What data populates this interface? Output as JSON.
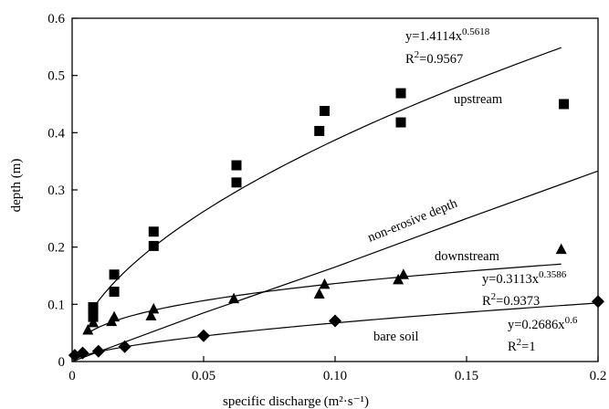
{
  "chart_data": {
    "type": "scatter",
    "title": "",
    "xlabel": "specific discharge",
    "xlabel_unit": "(m²·s⁻¹)",
    "ylabel": "depth (m)",
    "xlim": [
      0,
      0.2
    ],
    "ylim": [
      0,
      0.6
    ],
    "x_ticks": [
      0,
      0.05,
      0.1,
      0.15,
      0.2
    ],
    "x_tick_labels": [
      "0",
      "0.05",
      "0.10",
      "0.15",
      "0.2"
    ],
    "y_ticks": [
      0,
      0.1,
      0.2,
      0.3,
      0.4,
      0.5,
      0.6
    ],
    "y_tick_labels": [
      "0",
      "0.1",
      "0.2",
      "0.3",
      "0.4",
      "0.5",
      "0.6"
    ],
    "grid": false,
    "legend": "none",
    "series": [
      {
        "name": "upstream",
        "marker": "square",
        "color": "#000000",
        "points": [
          [
            0.008,
            0.095
          ],
          [
            0.008,
            0.09
          ],
          [
            0.008,
            0.078
          ],
          [
            0.016,
            0.152
          ],
          [
            0.016,
            0.122
          ],
          [
            0.031,
            0.227
          ],
          [
            0.031,
            0.202
          ],
          [
            0.0625,
            0.343
          ],
          [
            0.0625,
            0.313
          ],
          [
            0.094,
            0.403
          ],
          [
            0.096,
            0.438
          ],
          [
            0.125,
            0.469
          ],
          [
            0.125,
            0.418
          ],
          [
            0.187,
            0.45
          ]
        ],
        "fit": {
          "a": 1.4114,
          "b": 0.5618,
          "r2": 0.9567
        }
      },
      {
        "name": "downstream",
        "marker": "triangle",
        "color": "#000000",
        "points": [
          [
            0.006,
            0.055
          ],
          [
            0.008,
            0.068
          ],
          [
            0.015,
            0.07
          ],
          [
            0.016,
            0.078
          ],
          [
            0.03,
            0.08
          ],
          [
            0.031,
            0.092
          ],
          [
            0.0615,
            0.11
          ],
          [
            0.094,
            0.118
          ],
          [
            0.096,
            0.135
          ],
          [
            0.124,
            0.143
          ],
          [
            0.126,
            0.152
          ],
          [
            0.186,
            0.196
          ]
        ],
        "fit": {
          "a": 0.3113,
          "b": 0.3586,
          "r2": 0.9373
        }
      },
      {
        "name": "bare soil",
        "marker": "diamond",
        "color": "#000000",
        "points": [
          [
            0.001,
            0.011
          ],
          [
            0.004,
            0.015
          ],
          [
            0.01,
            0.018
          ],
          [
            0.02,
            0.026
          ],
          [
            0.05,
            0.045
          ],
          [
            0.1,
            0.071
          ],
          [
            0.2,
            0.105
          ]
        ],
        "fit": {
          "a": 0.2686,
          "b": 0.6,
          "r2": 1
        }
      },
      {
        "name": "non-erosive depth",
        "marker": "none",
        "color": "#000000",
        "line": [
          [
            0.0,
            0.0
          ],
          [
            0.05,
            0.085
          ],
          [
            0.1,
            0.165
          ],
          [
            0.15,
            0.25
          ],
          [
            0.2,
            0.333
          ]
        ]
      }
    ],
    "annotations": {
      "upstream_eq": "y=1.4114x",
      "upstream_exp": "0.5618",
      "upstream_r2": "R",
      "upstream_r2_val": "=0.9567",
      "upstream_label": "upstream",
      "non_erosive_label": "non-erosive depth",
      "downstream_label": "downstream",
      "downstream_eq": "y=0.3113x",
      "downstream_exp": "0.3586",
      "downstream_r2": "R",
      "downstream_r2_val": "=0.9373",
      "bare_eq": "y=0.2686x",
      "bare_exp": "0.6",
      "bare_r2": "R",
      "bare_r2_val": "=1",
      "bare_label": "bare soil",
      "sq": "2"
    }
  }
}
